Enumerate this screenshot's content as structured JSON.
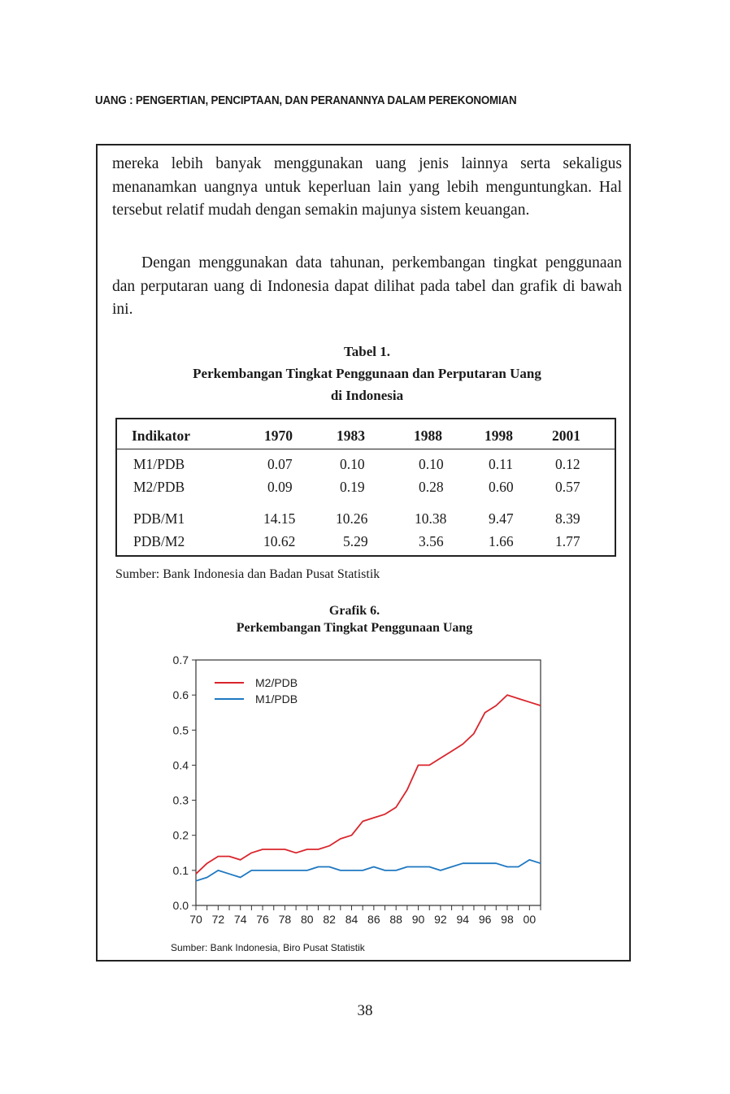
{
  "running_head": "UANG : PENGERTIAN, PENCIPTAAN, DAN PERANANNYA DALAM PEREKONOMIAN",
  "paragraphs": [
    "mereka lebih banyak menggunakan uang jenis lainnya serta sekaligus menanamkan uangnya untuk keperluan lain yang lebih mengun­tungkan. Hal tersebut relatif mudah dengan semakin majunya sistem keuangan.",
    "Dengan menggunakan data tahunan, perkembangan tingkat penggunaan dan perputaran uang di Indonesia dapat dilihat pada tabel dan grafik di bawah ini."
  ],
  "table": {
    "caption_line1": "Tabel 1.",
    "caption_line2": "Perkembangan Tingkat Penggunaan dan Perputaran Uang",
    "caption_line3": "di Indonesia",
    "headers": [
      "Indikator",
      "1970",
      "1983",
      "1988",
      "1998",
      "2001"
    ],
    "rows": [
      [
        "M1/PDB",
        "0.07",
        "0.10",
        "0.10",
        "0.11",
        "0.12"
      ],
      [
        "M2/PDB",
        "0.09",
        "0.19",
        "0.28",
        "0.60",
        "0.57"
      ],
      [
        "PDB/M1",
        "14.15",
        "10.26",
        "10.38",
        "9.47",
        "8.39"
      ],
      [
        "PDB/M2",
        "10.62",
        "5.29",
        "3.56",
        "1.66",
        "1.77"
      ]
    ],
    "source": "Sumber: Bank Indonesia dan Badan Pusat Statistik"
  },
  "chart_data": {
    "type": "line",
    "title": "Grafik 6.",
    "subtitle": "Perkembangan Tingkat Penggunaan Uang",
    "x": [
      1970,
      1971,
      1972,
      1973,
      1974,
      1975,
      1976,
      1977,
      1978,
      1979,
      1980,
      1981,
      1982,
      1983,
      1984,
      1985,
      1986,
      1987,
      1988,
      1989,
      1990,
      1991,
      1992,
      1993,
      1994,
      1995,
      1996,
      1997,
      1998,
      1999,
      2000,
      2001
    ],
    "x_tick_labels": [
      "70",
      "72",
      "74",
      "76",
      "78",
      "80",
      "82",
      "84",
      "86",
      "88",
      "90",
      "92",
      "94",
      "96",
      "98",
      "00"
    ],
    "y_tick_labels": [
      "0.0",
      "0.1",
      "0.2",
      "0.3",
      "0.4",
      "0.5",
      "0.6",
      "0.7"
    ],
    "ylim": [
      0,
      0.7
    ],
    "xlim": [
      1970,
      2001
    ],
    "legend_position": "top-left",
    "grid": false,
    "series": [
      {
        "name": "M2/PDB",
        "color": "#d9252c",
        "values": [
          0.09,
          0.12,
          0.14,
          0.14,
          0.13,
          0.15,
          0.16,
          0.16,
          0.16,
          0.15,
          0.16,
          0.16,
          0.17,
          0.19,
          0.2,
          0.24,
          0.25,
          0.26,
          0.28,
          0.33,
          0.4,
          0.4,
          0.42,
          0.44,
          0.46,
          0.49,
          0.55,
          0.57,
          0.6,
          0.59,
          0.58,
          0.57
        ]
      },
      {
        "name": "M1/PDB",
        "color": "#1f78c1",
        "values": [
          0.07,
          0.08,
          0.1,
          0.09,
          0.08,
          0.1,
          0.1,
          0.1,
          0.1,
          0.1,
          0.1,
          0.11,
          0.11,
          0.1,
          0.1,
          0.1,
          0.11,
          0.1,
          0.1,
          0.11,
          0.11,
          0.11,
          0.1,
          0.11,
          0.12,
          0.12,
          0.12,
          0.12,
          0.11,
          0.11,
          0.13,
          0.12
        ]
      }
    ],
    "source": "Sumber: Bank Indonesia, Biro Pusat Statistik"
  },
  "page_number": "38"
}
